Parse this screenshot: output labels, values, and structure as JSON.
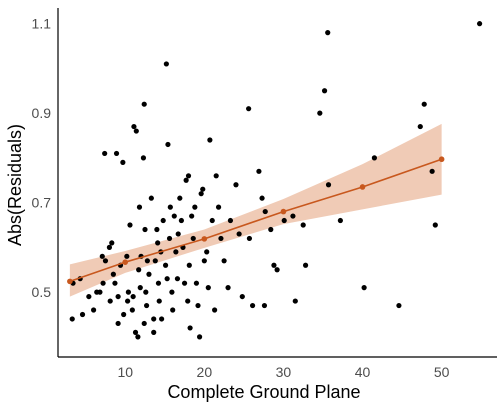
{
  "chart_data": {
    "type": "scatter",
    "title": "",
    "xlabel": "Complete Ground Plane",
    "ylabel": "Abs(Residuals)",
    "xlim": [
      1.5,
      57
    ],
    "ylim": [
      0.355,
      1.135
    ],
    "xticks": [
      10,
      20,
      30,
      40,
      50
    ],
    "xtick_labels": [
      "10",
      "20",
      "30",
      "40",
      "50"
    ],
    "yticks": [
      0.5,
      0.7,
      0.9,
      1.1
    ],
    "ytick_labels": [
      "0.5",
      "0.7",
      "0.9",
      "1.1"
    ],
    "grid": false,
    "colors": {
      "points": "#000000",
      "fit_line": "#c8581e",
      "fit_points": "#c8581e",
      "confidence_band": "#f0cbb6",
      "axis": "#000000"
    },
    "scatter_points": [
      [
        3.3,
        0.44
      ],
      [
        3.4,
        0.52
      ],
      [
        4.3,
        0.53
      ],
      [
        4.6,
        0.45
      ],
      [
        5.4,
        0.49
      ],
      [
        6.0,
        0.46
      ],
      [
        6.4,
        0.5
      ],
      [
        6.8,
        0.5
      ],
      [
        7.2,
        0.52
      ],
      [
        7.1,
        0.58
      ],
      [
        7.4,
        0.81
      ],
      [
        7.5,
        0.57
      ],
      [
        8.0,
        0.6
      ],
      [
        8.3,
        0.61
      ],
      [
        8.1,
        0.48
      ],
      [
        8.5,
        0.54
      ],
      [
        8.9,
        0.81
      ],
      [
        8.7,
        0.52
      ],
      [
        9.1,
        0.49
      ],
      [
        9.1,
        0.43
      ],
      [
        9.4,
        0.56
      ],
      [
        9.7,
        0.79
      ],
      [
        9.8,
        0.45
      ],
      [
        10.4,
        0.5
      ],
      [
        10.3,
        0.48
      ],
      [
        10.2,
        0.58
      ],
      [
        10.6,
        0.65
      ],
      [
        10.9,
        0.46
      ],
      [
        11.1,
        0.87
      ],
      [
        11.0,
        0.49
      ],
      [
        11.4,
        0.86
      ],
      [
        11.3,
        0.41
      ],
      [
        11.6,
        0.4
      ],
      [
        11.7,
        0.55
      ],
      [
        11.8,
        0.69
      ],
      [
        12.0,
        0.58
      ],
      [
        11.9,
        0.51
      ],
      [
        12.3,
        0.8
      ],
      [
        12.4,
        0.43
      ],
      [
        12.5,
        0.64
      ],
      [
        12.6,
        0.5
      ],
      [
        12.7,
        0.47
      ],
      [
        12.8,
        0.57
      ],
      [
        12.4,
        0.92
      ],
      [
        13.0,
        0.54
      ],
      [
        13.3,
        0.71
      ],
      [
        13.6,
        0.44
      ],
      [
        13.6,
        0.41
      ],
      [
        13.8,
        0.57
      ],
      [
        14.0,
        0.64
      ],
      [
        14.1,
        0.61
      ],
      [
        14.2,
        0.52
      ],
      [
        14.3,
        0.48
      ],
      [
        14.5,
        0.59
      ],
      [
        14.6,
        0.44
      ],
      [
        14.8,
        0.66
      ],
      [
        15.1,
        0.56
      ],
      [
        15.2,
        1.01
      ],
      [
        15.3,
        0.53
      ],
      [
        15.4,
        0.83
      ],
      [
        15.6,
        0.62
      ],
      [
        15.7,
        0.69
      ],
      [
        15.9,
        0.5
      ],
      [
        16.0,
        0.46
      ],
      [
        16.2,
        0.67
      ],
      [
        16.4,
        0.59
      ],
      [
        16.6,
        0.53
      ],
      [
        16.7,
        0.63
      ],
      [
        16.9,
        0.71
      ],
      [
        17.1,
        0.66
      ],
      [
        17.3,
        0.6
      ],
      [
        17.5,
        0.52
      ],
      [
        17.7,
        0.75
      ],
      [
        17.9,
        0.48
      ],
      [
        18.0,
        0.76
      ],
      [
        18.1,
        0.56
      ],
      [
        18.2,
        0.42
      ],
      [
        18.4,
        0.67
      ],
      [
        18.6,
        0.62
      ],
      [
        18.8,
        0.69
      ],
      [
        19.0,
        0.52
      ],
      [
        19.2,
        0.47
      ],
      [
        19.4,
        0.4
      ],
      [
        19.6,
        0.72
      ],
      [
        19.8,
        0.73
      ],
      [
        20.0,
        0.57
      ],
      [
        20.3,
        0.59
      ],
      [
        20.5,
        0.51
      ],
      [
        20.7,
        0.84
      ],
      [
        21.0,
        0.66
      ],
      [
        21.3,
        0.46
      ],
      [
        21.5,
        0.76
      ],
      [
        21.8,
        0.69
      ],
      [
        22.1,
        0.62
      ],
      [
        22.5,
        0.57
      ],
      [
        23.0,
        0.51
      ],
      [
        23.3,
        0.66
      ],
      [
        24.0,
        0.74
      ],
      [
        24.4,
        0.63
      ],
      [
        24.8,
        0.49
      ],
      [
        25.6,
        0.91
      ],
      [
        25.7,
        0.62
      ],
      [
        26.1,
        0.47
      ],
      [
        26.9,
        0.77
      ],
      [
        27.3,
        0.71
      ],
      [
        27.7,
        0.68
      ],
      [
        27.6,
        0.47
      ],
      [
        28.4,
        0.64
      ],
      [
        28.8,
        0.56
      ],
      [
        29.2,
        0.55
      ],
      [
        30.1,
        0.66
      ],
      [
        31.2,
        0.67
      ],
      [
        31.5,
        0.48
      ],
      [
        32.5,
        0.65
      ],
      [
        32.8,
        0.56
      ],
      [
        34.6,
        0.9
      ],
      [
        35.2,
        0.95
      ],
      [
        35.6,
        1.08
      ],
      [
        35.7,
        0.74
      ],
      [
        37.2,
        0.66
      ],
      [
        40.2,
        0.51
      ],
      [
        41.5,
        0.8
      ],
      [
        44.6,
        0.47
      ],
      [
        47.3,
        0.87
      ],
      [
        47.8,
        0.92
      ],
      [
        48.8,
        0.77
      ],
      [
        49.2,
        0.65
      ],
      [
        54.8,
        1.1
      ]
    ],
    "fit_points": [
      [
        3,
        0.524
      ],
      [
        10,
        0.567
      ],
      [
        20,
        0.619
      ],
      [
        30,
        0.68
      ],
      [
        40,
        0.735
      ],
      [
        50,
        0.797
      ]
    ],
    "confidence_band": [
      [
        3,
        0.49,
        0.562
      ],
      [
        10,
        0.543,
        0.592
      ],
      [
        20,
        0.599,
        0.64
      ],
      [
        30,
        0.652,
        0.708
      ],
      [
        40,
        0.685,
        0.786
      ],
      [
        50,
        0.718,
        0.876
      ]
    ]
  }
}
